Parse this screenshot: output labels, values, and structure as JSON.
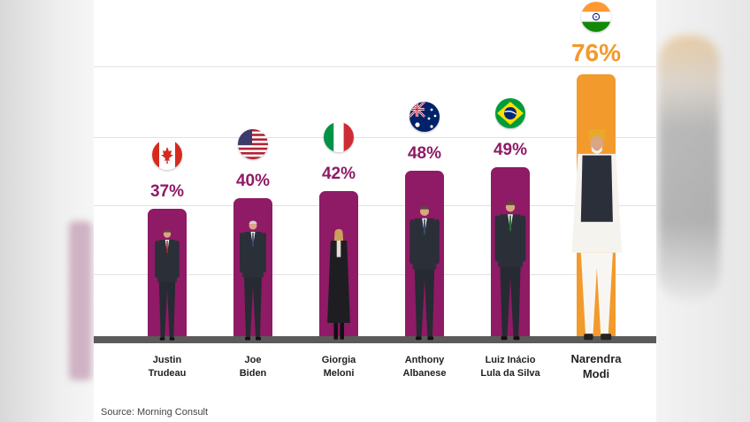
{
  "chart_data": {
    "type": "bar",
    "title": "",
    "xlabel": "",
    "ylabel": "",
    "ylim": [
      0,
      80
    ],
    "categories": [
      "Justin Trudeau",
      "Joe Biden",
      "Giorgia Meloni",
      "Anthony Albanese",
      "Luiz Inácio Lula da Silva",
      "Narendra Modi"
    ],
    "values": [
      37,
      40,
      42,
      48,
      49,
      76
    ],
    "value_labels": [
      "37%",
      "40%",
      "42%",
      "48%",
      "49%",
      "76%"
    ],
    "name_lines": [
      [
        "Justin",
        "Trudeau"
      ],
      [
        "Joe",
        "Biden"
      ],
      [
        "Giorgia",
        "Meloni"
      ],
      [
        "Anthony",
        "Albanese"
      ],
      [
        "Luiz Inácio",
        "Lula da Silva"
      ],
      [
        "Narendra",
        "Modi"
      ]
    ],
    "flags": [
      "canada-flag",
      "usa-flag",
      "italy-flag",
      "australia-flag",
      "brazil-flag",
      "india-flag"
    ],
    "highlight_index": 5,
    "grid": true
  },
  "colors": {
    "bar": "#8f1a65",
    "highlight": "#f29a2c",
    "baseline": "#5a5a5a"
  },
  "source": "Source: Morning Consult"
}
